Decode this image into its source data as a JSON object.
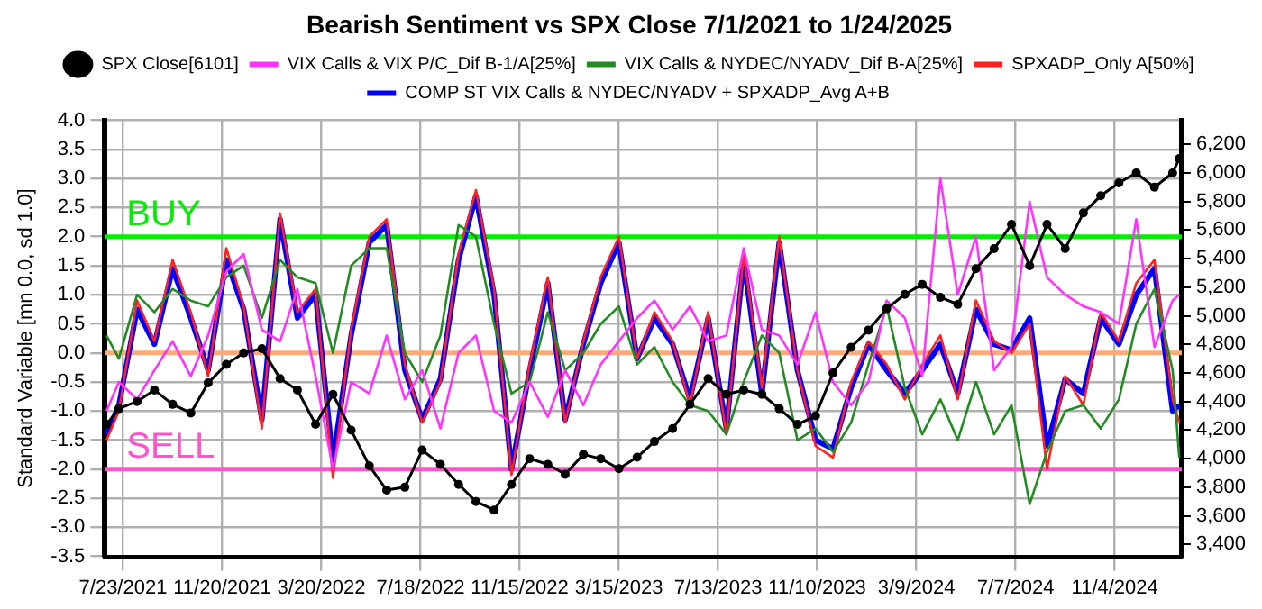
{
  "chart_data": {
    "type": "line",
    "title": "Bearish Sentiment vs SPX Close 7/1/2021 to 1/24/2025",
    "ylabel": "Standard Variable [mn 0.0, sd 1.0]",
    "x": [
      "2021-07-03",
      "2021-07-18",
      "2021-08-09",
      "2021-08-30",
      "2021-09-21",
      "2021-10-13",
      "2021-11-03",
      "2021-11-25",
      "2021-12-16",
      "2022-01-07",
      "2022-01-29",
      "2022-02-19",
      "2022-03-13",
      "2022-04-03",
      "2022-04-25",
      "2022-05-17",
      "2022-06-07",
      "2022-06-29",
      "2022-07-20",
      "2022-08-11",
      "2022-09-02",
      "2022-09-23",
      "2022-10-15",
      "2022-11-05",
      "2022-11-27",
      "2022-12-19",
      "2023-01-09",
      "2023-01-31",
      "2023-02-21",
      "2023-03-15",
      "2023-04-06",
      "2023-04-27",
      "2023-05-19",
      "2023-06-09",
      "2023-07-01",
      "2023-07-23",
      "2023-08-13",
      "2023-09-04",
      "2023-09-25",
      "2023-10-17",
      "2023-11-08",
      "2023-11-29",
      "2023-12-21",
      "2024-01-11",
      "2024-02-02",
      "2024-02-24",
      "2024-03-16",
      "2024-04-07",
      "2024-04-28",
      "2024-05-20",
      "2024-06-11",
      "2024-07-02",
      "2024-07-24",
      "2024-08-14",
      "2024-09-05",
      "2024-09-27",
      "2024-10-18",
      "2024-11-09",
      "2024-11-30",
      "2024-12-22",
      "2025-01-13",
      "2025-01-21"
    ],
    "series": [
      {
        "name": "SPX Close[6101]",
        "color": "#000000",
        "axis": "y2",
        "marker": "circle",
        "values": [
          4240,
          4350,
          4400,
          4480,
          4380,
          4320,
          4530,
          4660,
          4740,
          4770,
          4560,
          4480,
          4240,
          4450,
          4200,
          3950,
          3780,
          3800,
          4060,
          3960,
          3820,
          3700,
          3640,
          3820,
          4000,
          3960,
          3890,
          4030,
          4000,
          3930,
          4010,
          4120,
          4210,
          4380,
          4560,
          4450,
          4480,
          4450,
          4350,
          4240,
          4300,
          4600,
          4780,
          4900,
          5050,
          5150,
          5220,
          5130,
          5080,
          5330,
          5470,
          5640,
          5350,
          5640,
          5470,
          5720,
          5840,
          5930,
          6000,
          5900,
          6000,
          6100
        ]
      },
      {
        "name": "VIX Calls & VIX P/C_Dif B-1/A[25%]",
        "color": "#ff33ff",
        "values": [
          -1.0,
          -0.5,
          -0.8,
          -0.3,
          0.2,
          -0.4,
          0.3,
          1.4,
          1.7,
          0.4,
          0.2,
          1.1,
          -0.4,
          -2.0,
          -0.5,
          -0.7,
          0.3,
          -0.8,
          -0.3,
          -1.3,
          0.0,
          0.3,
          -1.0,
          -1.2,
          -0.5,
          -1.1,
          -0.3,
          -0.9,
          -0.2,
          0.2,
          0.6,
          0.9,
          0.4,
          0.8,
          0.2,
          0.3,
          1.8,
          0.4,
          0.3,
          -0.2,
          0.7,
          -0.5,
          -0.9,
          -0.5,
          0.9,
          0.6,
          -0.4,
          3.0,
          1.0,
          2.0,
          -0.3,
          0.1,
          2.6,
          1.3,
          1.0,
          0.8,
          0.7,
          0.5,
          2.3,
          0.1,
          0.9,
          1.0
        ]
      },
      {
        "name": "VIX Calls & NYDEC/NYADV_Dif B-A[25%]",
        "color": "#228b22",
        "values": [
          0.3,
          -0.1,
          1.0,
          0.7,
          1.1,
          0.9,
          0.8,
          1.3,
          1.5,
          0.6,
          1.6,
          1.3,
          1.2,
          0.0,
          1.5,
          1.8,
          1.8,
          0.0,
          -0.5,
          0.3,
          2.2,
          2.0,
          0.5,
          -0.7,
          -0.5,
          0.7,
          -0.3,
          0.0,
          0.5,
          0.8,
          -0.2,
          0.1,
          -0.5,
          -0.9,
          -1.0,
          -1.4,
          -0.5,
          0.3,
          0.0,
          -1.5,
          -1.3,
          -1.7,
          -1.2,
          -0.2,
          0.8,
          -0.6,
          -1.4,
          -0.8,
          -1.5,
          -0.5,
          -1.4,
          -0.9,
          -2.6,
          -1.7,
          -1.0,
          -0.9,
          -1.3,
          -0.8,
          0.5,
          1.1,
          -0.3,
          -1.8
        ]
      },
      {
        "name": "SPXADP_Only A[50%]",
        "color": "#ff2020",
        "values": [
          -1.5,
          -1.0,
          0.9,
          0.2,
          1.6,
          0.7,
          -0.4,
          1.8,
          0.8,
          -1.3,
          2.4,
          0.7,
          1.1,
          -2.15,
          0.4,
          2.0,
          2.3,
          -0.2,
          -1.2,
          -0.5,
          1.7,
          2.8,
          1.1,
          -2.1,
          -0.2,
          1.3,
          -1.2,
          0.2,
          1.3,
          2.0,
          -0.1,
          0.7,
          0.2,
          -0.9,
          0.7,
          -1.4,
          1.7,
          -0.6,
          2.0,
          -0.3,
          -1.6,
          -1.8,
          -0.5,
          0.2,
          -0.2,
          -0.8,
          -0.2,
          0.3,
          -0.8,
          0.9,
          0.2,
          0.0,
          0.5,
          -2.0,
          -0.4,
          -0.9,
          0.7,
          0.2,
          1.2,
          1.6,
          -0.8,
          -1.2
        ]
      },
      {
        "name": "COMP ST VIX Calls & NYDEC/NYADV + SPXADP_Avg A+B",
        "color": "#0000ff",
        "values": [
          -1.4,
          -0.9,
          0.75,
          0.15,
          1.45,
          0.6,
          -0.3,
          1.6,
          0.75,
          -1.15,
          2.3,
          0.6,
          1.0,
          -1.85,
          0.3,
          1.9,
          2.2,
          -0.3,
          -1.15,
          -0.45,
          1.6,
          2.7,
          1.0,
          -2.0,
          -0.3,
          1.2,
          -1.15,
          0.15,
          1.2,
          1.9,
          -0.1,
          0.6,
          0.15,
          -0.8,
          0.6,
          -1.3,
          1.6,
          -0.7,
          1.9,
          -0.3,
          -1.5,
          -1.65,
          -0.6,
          0.15,
          -0.3,
          -0.7,
          -0.3,
          0.15,
          -0.7,
          0.75,
          0.15,
          0.05,
          0.6,
          -1.6,
          -0.45,
          -0.7,
          0.6,
          0.15,
          1.0,
          1.45,
          -1.0,
          -0.9
        ]
      }
    ],
    "xlim": [
      "2021-07-01",
      "2025-01-24"
    ],
    "xticks": [
      {
        "value": "2021-07-23",
        "label": "7/23/2021"
      },
      {
        "value": "2021-11-20",
        "label": "11/20/2021"
      },
      {
        "value": "2022-03-20",
        "label": "3/20/2022"
      },
      {
        "value": "2022-07-18",
        "label": "7/18/2022"
      },
      {
        "value": "2022-11-15",
        "label": "11/15/2022"
      },
      {
        "value": "2023-03-15",
        "label": "3/15/2023"
      },
      {
        "value": "2023-07-13",
        "label": "7/13/2023"
      },
      {
        "value": "2023-11-10",
        "label": "11/10/2023"
      },
      {
        "value": "2024-03-09",
        "label": "3/9/2024"
      },
      {
        "value": "2024-07-07",
        "label": "7/7/2024"
      },
      {
        "value": "2024-11-04",
        "label": "11/4/2024"
      }
    ],
    "ylim": [
      -3.5,
      4.0
    ],
    "yticks": [
      {
        "value": -3.5,
        "label": "-3.5"
      },
      {
        "value": -3,
        "label": "-3.0"
      },
      {
        "value": -2.5,
        "label": "-2.5"
      },
      {
        "value": -2,
        "label": "-2.0"
      },
      {
        "value": -1.5,
        "label": "-1.5"
      },
      {
        "value": -1,
        "label": "-1.0"
      },
      {
        "value": -0.5,
        "label": "-0.5"
      },
      {
        "value": 0,
        "label": "0.0"
      },
      {
        "value": 0.5,
        "label": "0.5"
      },
      {
        "value": 1,
        "label": "1.0"
      },
      {
        "value": 1.5,
        "label": "1.5"
      },
      {
        "value": 2,
        "label": "2.0"
      },
      {
        "value": 2.5,
        "label": "2.5"
      },
      {
        "value": 3,
        "label": "3.0"
      },
      {
        "value": 3.5,
        "label": "3.5"
      },
      {
        "value": 4,
        "label": "4.0"
      }
    ],
    "y2lim": [
      3316,
      6368
    ],
    "y2ticks": [
      {
        "value": 3400,
        "label": "3,400"
      },
      {
        "value": 3600,
        "label": "3,600"
      },
      {
        "value": 3800,
        "label": "3,800"
      },
      {
        "value": 4000,
        "label": "4,000"
      },
      {
        "value": 4200,
        "label": "4,200"
      },
      {
        "value": 4400,
        "label": "4,400"
      },
      {
        "value": 4600,
        "label": "4,600"
      },
      {
        "value": 4800,
        "label": "4,800"
      },
      {
        "value": 5000,
        "label": "5,000"
      },
      {
        "value": 5200,
        "label": "5,200"
      },
      {
        "value": 5400,
        "label": "5,400"
      },
      {
        "value": 5600,
        "label": "5,600"
      },
      {
        "value": 5800,
        "label": "5,800"
      },
      {
        "value": 6000,
        "label": "6,000"
      },
      {
        "value": 6200,
        "label": "6,200"
      }
    ],
    "ref_lines": [
      {
        "axis": "y",
        "value": 2,
        "label": "BUY",
        "color": "#00ee00"
      },
      {
        "axis": "y",
        "value": -2,
        "label": "SELL",
        "color": "#ff55cc"
      },
      {
        "axis": "y",
        "value": 0,
        "color": "#ffaa77"
      }
    ],
    "grid": true,
    "legend": "top",
    "line_style": "solid"
  }
}
